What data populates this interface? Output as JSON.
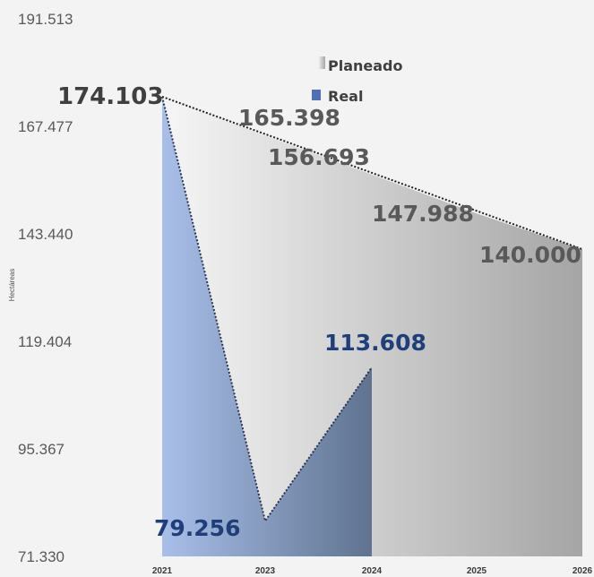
{
  "colors": {
    "planned_light": "#f6f6f6",
    "planned_dark": "#a5a5a5",
    "real_light": "#a9bfe9",
    "real_dark": "#5f7390",
    "planned_label": "#595959",
    "real_label": "#1f3f7a",
    "start_label": "#3f3f3f",
    "tick_text": "#595959"
  },
  "chart_data": {
    "type": "area",
    "ylabel": "Hectáreas",
    "ylim": [
      71.33,
      191.513
    ],
    "yticks": [
      "191.513",
      "167.477",
      "143.440",
      "119.404",
      "95.367",
      "71.330"
    ],
    "ytick_values": [
      191.513,
      167.477,
      143.44,
      119.404,
      95.367,
      71.33
    ],
    "x_labels": [
      "2021",
      "2023",
      "2024",
      "2025",
      "2026"
    ],
    "legend_position": "top-center",
    "series": [
      {
        "name": "Planeado",
        "points": [
          {
            "x": "2021",
            "y": 174.103
          },
          {
            "x": "2023",
            "y": 165.398
          },
          {
            "x": "2024",
            "y": 156.693
          },
          {
            "x": "2025",
            "y": 147.988
          },
          {
            "x": "2026",
            "y": 140.0
          }
        ],
        "labels": [
          "174.103",
          "165.398",
          "156.693",
          "147.988",
          "140.000"
        ]
      },
      {
        "name": "Real",
        "points": [
          {
            "x": "2021",
            "y": 174.103
          },
          {
            "x": "2023",
            "y": 79.256
          },
          {
            "x": "2024",
            "y": 113.608
          }
        ],
        "labels": [
          "79.256",
          "113.608"
        ]
      }
    ]
  }
}
